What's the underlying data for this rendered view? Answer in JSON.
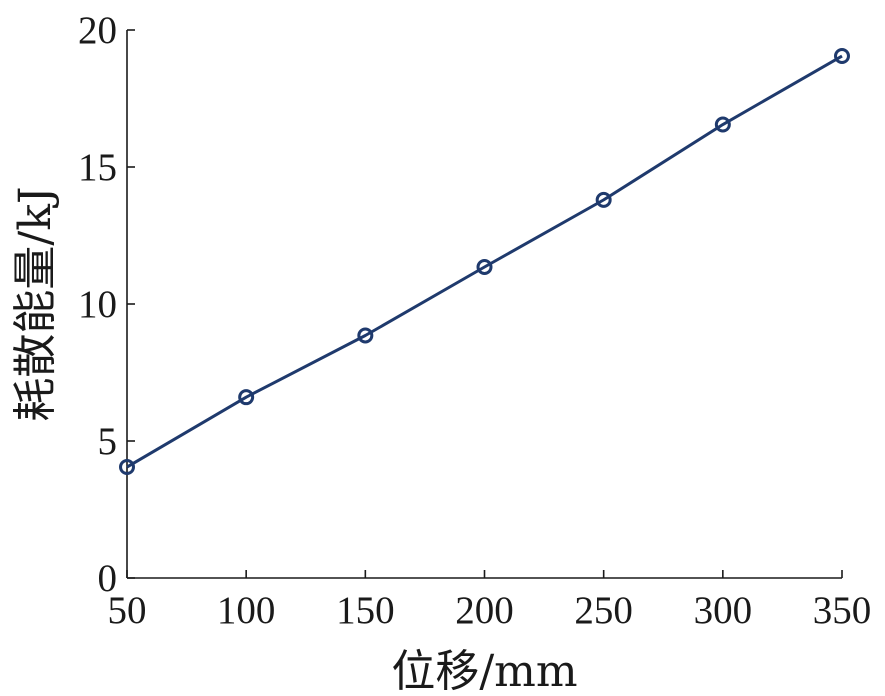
{
  "chart_data": {
    "type": "line",
    "title": "",
    "xlabel": "位移/mm",
    "ylabel": "耗散能量/kJ",
    "x": [
      50,
      100,
      150,
      200,
      250,
      300,
      350
    ],
    "series": [
      {
        "values": [
          4.05,
          6.6,
          8.85,
          11.35,
          13.8,
          16.55,
          19.05
        ],
        "color": "#1f3a6d",
        "marker": "circle"
      }
    ],
    "xlim": [
      50,
      350
    ],
    "ylim": [
      0,
      20
    ],
    "xticks": [
      "50",
      "100",
      "150",
      "200",
      "250",
      "300",
      "350"
    ],
    "yticks": [
      "0",
      "5",
      "10",
      "15",
      "20"
    ],
    "grid": false,
    "legend": "none"
  }
}
